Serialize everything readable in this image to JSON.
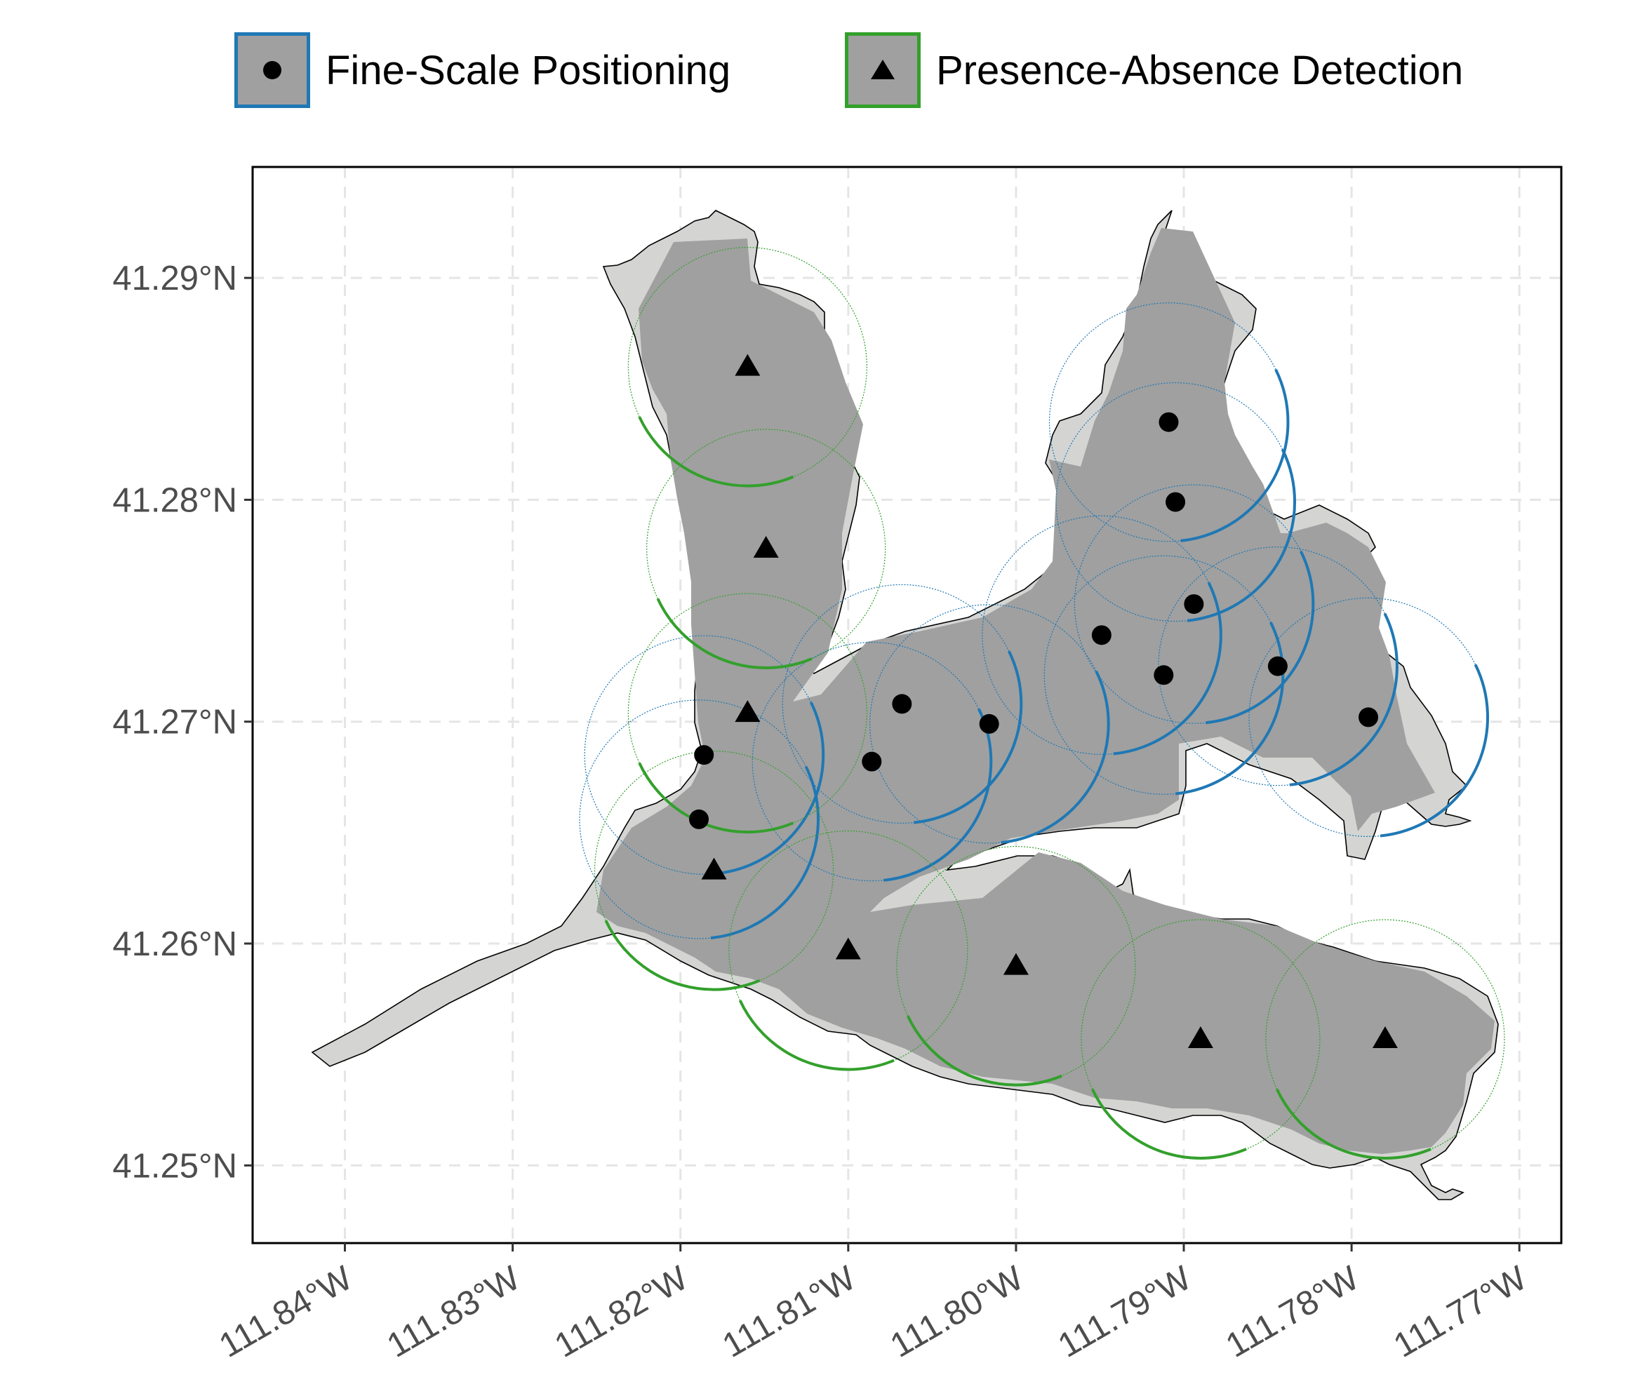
{
  "legend": {
    "items": [
      {
        "label": "Fine-Scale Positioning",
        "shape": "circle",
        "color": "#1f78b4"
      },
      {
        "label": "Presence-Absence Detection",
        "shape": "triangle",
        "color": "#33a02c"
      }
    ]
  },
  "axes": {
    "y_ticks": [
      "41.29°N",
      "41.28°N",
      "41.27°N",
      "41.26°N",
      "41.25°N"
    ],
    "x_ticks": [
      "111.84°W",
      "111.83°W",
      "111.82°W",
      "111.81°W",
      "111.80°W",
      "111.79°W",
      "111.78°W",
      "111.77°W"
    ]
  },
  "colors": {
    "lake_fill": "#d4d5d3",
    "coverage_fill": "#a0a0a0",
    "fine_scale": "#1f78b4",
    "presence_absence": "#33a02c",
    "grid": "#e5e5e5"
  },
  "chart_data": {
    "type": "scatter",
    "xlim": [
      -111.8455,
      -111.7675
    ],
    "ylim": [
      41.2465,
      41.295
    ],
    "grid": true,
    "legend_position": "top",
    "series": [
      {
        "name": "Fine-Scale Positioning",
        "marker": "circle",
        "points": [
          {
            "lon": -111.7909,
            "lat": 41.2835
          },
          {
            "lon": -111.7905,
            "lat": 41.2799
          },
          {
            "lon": -111.7894,
            "lat": 41.2753
          },
          {
            "lon": -111.7949,
            "lat": 41.2739
          },
          {
            "lon": -111.7912,
            "lat": 41.2721
          },
          {
            "lon": -111.7844,
            "lat": 41.2725
          },
          {
            "lon": -111.779,
            "lat": 41.2702
          },
          {
            "lon": -111.8016,
            "lat": 41.2699
          },
          {
            "lon": -111.8068,
            "lat": 41.2708
          },
          {
            "lon": -111.8186,
            "lat": 41.2685
          },
          {
            "lon": -111.8086,
            "lat": 41.2682
          },
          {
            "lon": -111.8189,
            "lat": 41.2656
          }
        ]
      },
      {
        "name": "Presence-Absence Detection",
        "marker": "triangle",
        "points": [
          {
            "lon": -111.816,
            "lat": 41.286
          },
          {
            "lon": -111.8149,
            "lat": 41.2778
          },
          {
            "lon": -111.816,
            "lat": 41.2704
          },
          {
            "lon": -111.818,
            "lat": 41.2633
          },
          {
            "lon": -111.81,
            "lat": 41.2597
          },
          {
            "lon": -111.8,
            "lat": 41.259
          },
          {
            "lon": -111.789,
            "lat": 41.2557
          },
          {
            "lon": -111.778,
            "lat": 41.2557
          }
        ]
      }
    ]
  }
}
